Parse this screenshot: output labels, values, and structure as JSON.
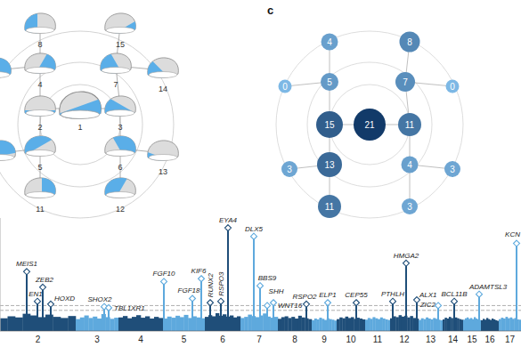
{
  "diagram": {
    "nodes": [
      {
        "label": "1"
      },
      {
        "label": "2"
      },
      {
        "label": "3"
      },
      {
        "label": "4"
      },
      {
        "label": "7"
      },
      {
        "label": "5"
      },
      {
        "label": "6"
      },
      {
        "label": "8"
      },
      {
        "label": "15"
      },
      {
        "label": null
      },
      {
        "label": "14"
      },
      {
        "label": null
      },
      {
        "label": "11"
      },
      {
        "label": "12"
      },
      {
        "label": "13"
      }
    ]
  },
  "panel_c": {
    "label": "c",
    "values": [
      21,
      15,
      11,
      5,
      7,
      13,
      4,
      4,
      8,
      0,
      0,
      3,
      11,
      3,
      3
    ]
  },
  "chart_data": {
    "type": "manhattan",
    "xlim": [
      0,
      2340
    ],
    "ylim": [
      0,
      40
    ],
    "tick_labels": "x",
    "thresholds": [
      7.3,
      9
    ],
    "chromosomes": [
      {
        "label": "2",
        "start": 0,
        "end": 340,
        "color": "#1f4e79",
        "envelope": [
          4.5,
          5.2,
          4.8,
          6.1,
          5.5,
          4.9,
          5.8,
          5.0,
          4.6,
          5.3
        ]
      },
      {
        "label": "3",
        "start": 340,
        "end": 532,
        "color": "#5ea9dd",
        "envelope": [
          4.2,
          4.8,
          5.5,
          4.6,
          5.1,
          4.4,
          6.0,
          4.9,
          4.3,
          4.7
        ]
      },
      {
        "label": "4",
        "start": 532,
        "end": 732,
        "color": "#1f4e79",
        "envelope": [
          4.8,
          5.3,
          4.5,
          5.0,
          5.6,
          4.7,
          5.2,
          4.4,
          5.0,
          4.6
        ]
      },
      {
        "label": "5",
        "start": 732,
        "end": 920,
        "color": "#5ea9dd",
        "envelope": [
          4.4,
          5.1,
          4.7,
          5.4,
          4.9,
          5.7,
          4.6,
          5.2,
          4.8,
          4.5
        ]
      },
      {
        "label": "6",
        "start": 920,
        "end": 1080,
        "color": "#1f4e79",
        "envelope": [
          5.0,
          5.6,
          5.2,
          6.3,
          5.4,
          5.9,
          5.1,
          5.5,
          4.8,
          5.2
        ]
      },
      {
        "label": "7",
        "start": 1080,
        "end": 1248,
        "color": "#5ea9dd",
        "envelope": [
          4.6,
          5.0,
          5.8,
          5.3,
          4.9,
          5.5,
          6.2,
          5.1,
          4.7,
          5.0
        ]
      },
      {
        "label": "8",
        "start": 1248,
        "end": 1400,
        "color": "#1f4e79",
        "envelope": [
          4.3,
          4.9,
          5.2,
          4.6,
          5.0,
          4.4,
          5.4,
          4.8,
          4.5,
          4.2
        ]
      },
      {
        "label": "9",
        "start": 1400,
        "end": 1512,
        "color": "#5ea9dd",
        "envelope": [
          3.8,
          4.4,
          4.1,
          4.7,
          4.3,
          3.9,
          4.5,
          4.2,
          4.0,
          3.7
        ]
      },
      {
        "label": "10",
        "start": 1512,
        "end": 1640,
        "color": "#1f4e79",
        "envelope": [
          4.2,
          4.8,
          4.5,
          5.1,
          4.6,
          4.9,
          4.3,
          4.7,
          4.4,
          4.1
        ]
      },
      {
        "label": "11",
        "start": 1640,
        "end": 1752,
        "color": "#5ea9dd",
        "envelope": [
          4.0,
          4.6,
          4.3,
          4.9,
          4.5,
          4.2,
          4.8,
          4.4,
          4.1,
          3.9
        ]
      },
      {
        "label": "12",
        "start": 1752,
        "end": 1880,
        "color": "#1f4e79",
        "envelope": [
          4.5,
          5.2,
          4.9,
          5.6,
          5.1,
          5.4,
          4.8,
          5.3,
          4.6,
          4.4
        ]
      },
      {
        "label": "13",
        "start": 1880,
        "end": 1988,
        "color": "#5ea9dd",
        "envelope": [
          3.9,
          4.5,
          4.2,
          4.8,
          4.4,
          4.1,
          4.6,
          4.3,
          4.0,
          3.8
        ]
      },
      {
        "label": "14",
        "start": 1988,
        "end": 2080,
        "color": "#1f4e79",
        "envelope": [
          4.1,
          4.7,
          4.4,
          5.0,
          4.6,
          4.3,
          4.8,
          4.5,
          4.2,
          4.0
        ]
      },
      {
        "label": "15",
        "start": 2080,
        "end": 2160,
        "color": "#5ea9dd",
        "envelope": [
          4.0,
          4.5,
          4.8,
          4.3,
          4.6,
          4.2,
          4.9,
          4.4,
          4.1,
          3.9
        ]
      },
      {
        "label": "16",
        "start": 2160,
        "end": 2240,
        "color": "#1f4e79",
        "envelope": [
          3.8,
          4.3,
          4.0,
          4.6,
          4.2,
          3.9,
          4.4,
          4.1,
          3.8,
          3.6
        ]
      },
      {
        "label": "17",
        "start": 2240,
        "end": 2340,
        "color": "#5ea9dd",
        "envelope": [
          4.2,
          4.7,
          4.4,
          5.0,
          4.5,
          4.8,
          4.3,
          4.6,
          4.1,
          4.0
        ]
      }
    ],
    "hits": [
      {
        "label": "MEIS1",
        "x": 120,
        "value": 21
      },
      {
        "label": "EN1",
        "x": 168,
        "value": 10.5
      },
      {
        "label": "ZEB2",
        "x": 192,
        "value": 15.5
      },
      {
        "label": "HOXD",
        "x": 228,
        "value": 9.5
      },
      {
        "label": "SHOX2",
        "x": 468,
        "value": 8.6
      },
      {
        "label": "TBL1XR1",
        "x": 488,
        "value": 8.2
      },
      {
        "label": "FGF10",
        "x": 736,
        "value": 17.5
      },
      {
        "label": "FGF18",
        "x": 864,
        "value": 11.5
      },
      {
        "label": "KIF6",
        "x": 904,
        "value": 18.5
      },
      {
        "label": "RUNX2",
        "x": 944,
        "value": 10
      },
      {
        "label": "RSPO3",
        "x": 992,
        "value": 10.5
      },
      {
        "label": "EYA4",
        "x": 1024,
        "value": 36.5
      },
      {
        "label": "DLX5",
        "x": 1140,
        "value": 33.5
      },
      {
        "label": "BBS9",
        "x": 1168,
        "value": 16
      },
      {
        "label": "WNT16",
        "x": 1200,
        "value": 9
      },
      {
        "label": "SHH",
        "x": 1228,
        "value": 10
      },
      {
        "label": "RSPO2",
        "x": 1376,
        "value": 9.5
      },
      {
        "label": "ELP1",
        "x": 1472,
        "value": 10
      },
      {
        "label": "CEP55",
        "x": 1600,
        "value": 10
      },
      {
        "label": "PTHLH",
        "x": 1764,
        "value": 10.5
      },
      {
        "label": "HMGA2",
        "x": 1824,
        "value": 24
      },
      {
        "label": "ALX1",
        "x": 1872,
        "value": 11
      },
      {
        "label": "ZIC2",
        "x": 1968,
        "value": 9
      },
      {
        "label": "BCL11B",
        "x": 2040,
        "value": 10.5
      },
      {
        "label": "ADAMTSL3",
        "x": 2152,
        "value": 13
      },
      {
        "label": "KCN",
        "x": 2320,
        "value": 31
      }
    ]
  }
}
